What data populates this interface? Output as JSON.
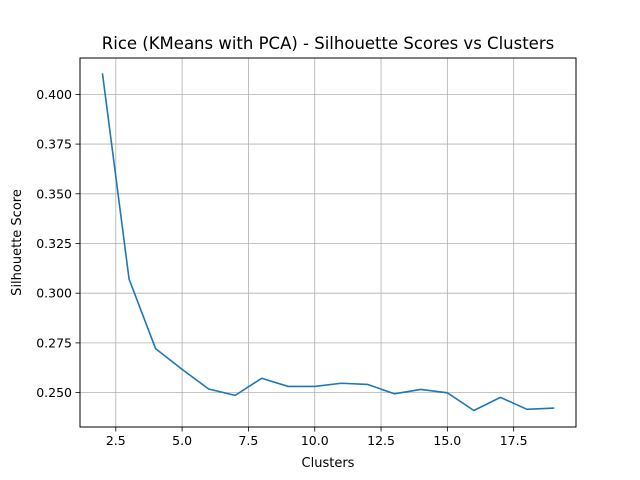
{
  "chart_data": {
    "type": "line",
    "title": "Rice (KMeans with PCA) - Silhouette Scores vs Clusters",
    "xlabel": "Clusters",
    "ylabel": "Silhouette Score",
    "xlim": [
      1.15,
      19.85
    ],
    "ylim": [
      0.2327,
      0.4183
    ],
    "xticks": [
      2.5,
      5.0,
      7.5,
      10.0,
      12.5,
      15.0,
      17.5
    ],
    "xtick_labels": [
      "2.5",
      "5.0",
      "7.5",
      "10.0",
      "12.5",
      "15.0",
      "17.5"
    ],
    "yticks": [
      0.25,
      0.275,
      0.3,
      0.325,
      0.35,
      0.375,
      0.4
    ],
    "ytick_labels": [
      "0.250",
      "0.275",
      "0.300",
      "0.325",
      "0.350",
      "0.375",
      "0.400"
    ],
    "grid": true,
    "line_color": "#1f77b4",
    "series": [
      {
        "x": [
          2,
          3,
          4,
          5,
          6,
          7,
          8,
          9,
          10,
          11,
          12,
          13,
          14,
          15,
          16,
          17,
          18,
          19
        ],
        "values": [
          0.4102,
          0.3071,
          0.2721,
          0.2617,
          0.2518,
          0.2486,
          0.2572,
          0.2531,
          0.2531,
          0.2547,
          0.2541,
          0.2494,
          0.2516,
          0.2499,
          0.241,
          0.2476,
          0.2416,
          0.2422
        ]
      }
    ]
  }
}
